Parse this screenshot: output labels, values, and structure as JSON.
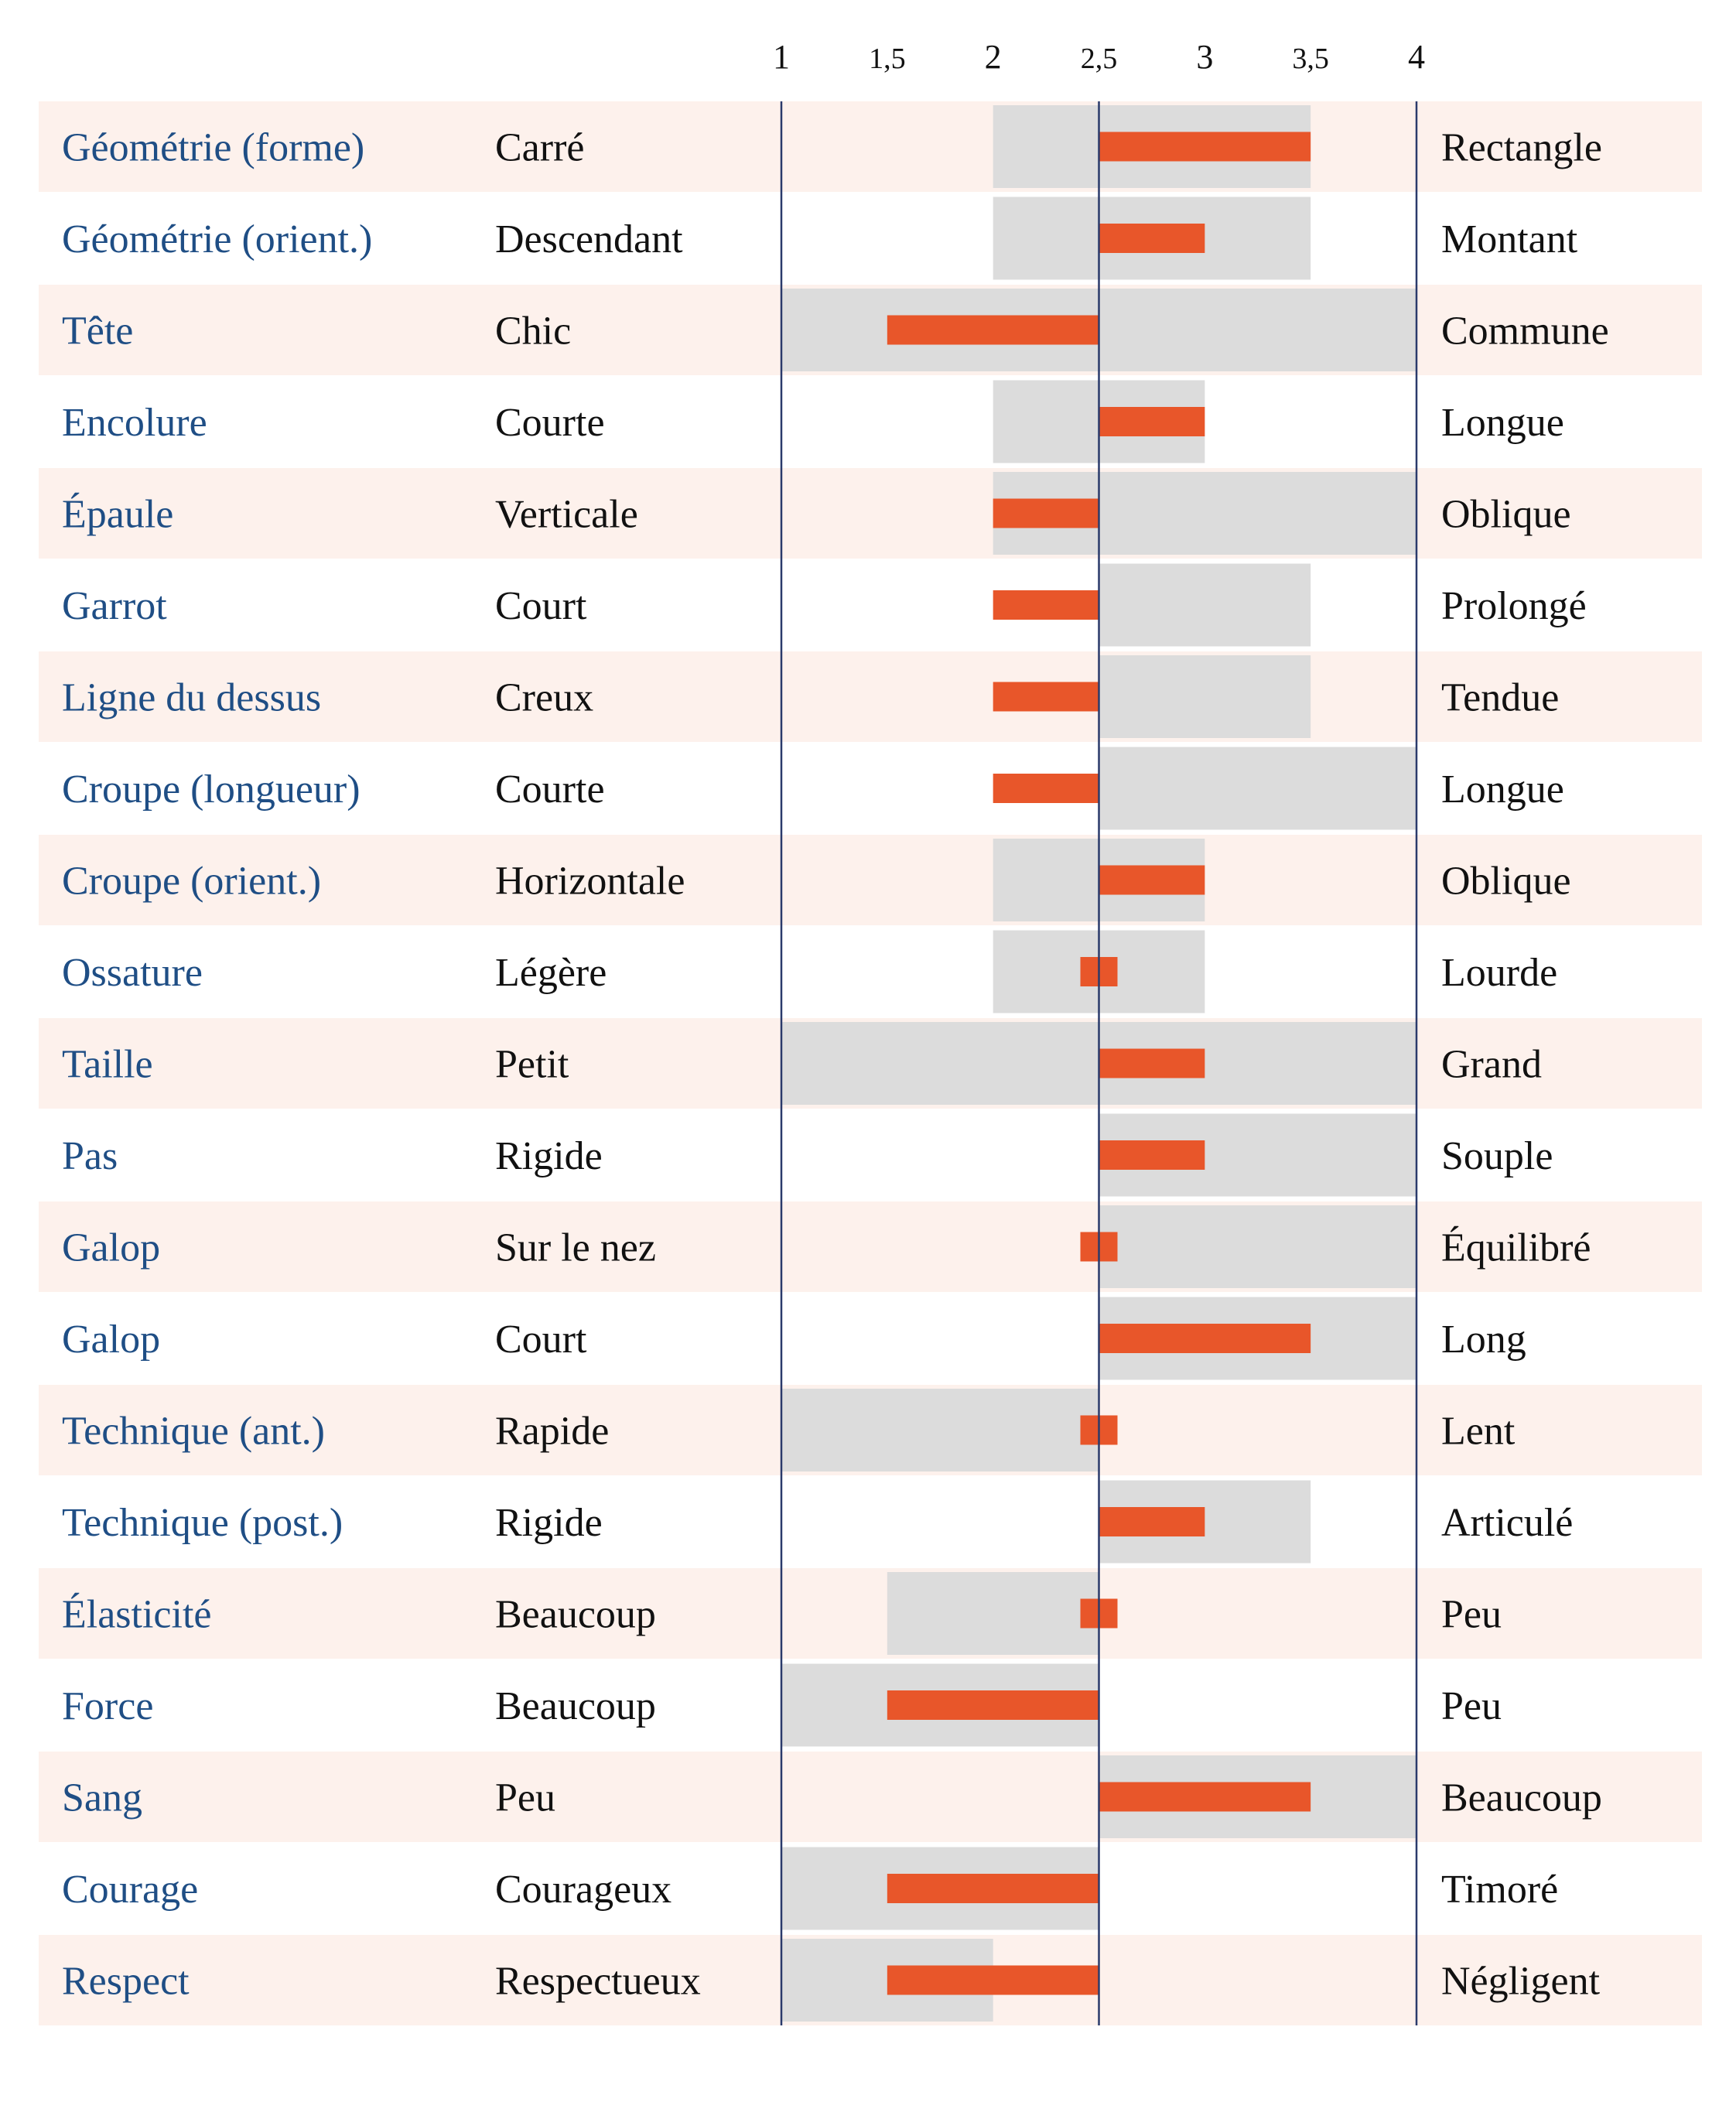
{
  "chart_data": {
    "type": "bar",
    "scale": {
      "min": 1,
      "max": 4,
      "center": 2.5
    },
    "ticks": [
      {
        "value": 1,
        "label": "1"
      },
      {
        "value": 1.5,
        "label": "1,5"
      },
      {
        "value": 2,
        "label": "2"
      },
      {
        "value": 2.5,
        "label": "2,5"
      },
      {
        "value": 3,
        "label": "3"
      },
      {
        "value": 3.5,
        "label": "3,5"
      },
      {
        "value": 4,
        "label": "4"
      }
    ],
    "rows": [
      {
        "trait": "Géométrie (forme)",
        "low": "Carré",
        "high": "Rectangle",
        "range": [
          2.0,
          3.5
        ],
        "value": 3.5
      },
      {
        "trait": "Géométrie (orient.)",
        "low": "Descendant",
        "high": "Montant",
        "range": [
          2.0,
          3.5
        ],
        "value": 3.0
      },
      {
        "trait": "Tête",
        "low": "Chic",
        "high": "Commune",
        "range": [
          1.0,
          4.0
        ],
        "value": 1.5
      },
      {
        "trait": "Encolure",
        "low": "Courte",
        "high": "Longue",
        "range": [
          2.0,
          3.0
        ],
        "value": 3.0
      },
      {
        "trait": "Épaule",
        "low": "Verticale",
        "high": "Oblique",
        "range": [
          2.0,
          4.0
        ],
        "value": 2.0
      },
      {
        "trait": "Garrot",
        "low": "Court",
        "high": "Prolongé",
        "range": [
          2.5,
          3.5
        ],
        "value": 2.0
      },
      {
        "trait": "Ligne du dessus",
        "low": "Creux",
        "high": "Tendue",
        "range": [
          2.5,
          3.5
        ],
        "value": 2.0
      },
      {
        "trait": "Croupe (longueur)",
        "low": "Courte",
        "high": "Longue",
        "range": [
          2.5,
          4.0
        ],
        "value": 2.0
      },
      {
        "trait": "Croupe (orient.)",
        "low": "Horizontale",
        "high": "Oblique",
        "range": [
          2.0,
          3.0
        ],
        "value": 3.0
      },
      {
        "trait": "Ossature",
        "low": "Légère",
        "high": "Lourde",
        "range": [
          2.0,
          3.0
        ],
        "value": 2.5
      },
      {
        "trait": "Taille",
        "low": "Petit",
        "high": "Grand",
        "range": [
          1.0,
          4.0
        ],
        "value": 3.0
      },
      {
        "trait": "Pas",
        "low": "Rigide",
        "high": "Souple",
        "range": [
          2.5,
          4.0
        ],
        "value": 3.0
      },
      {
        "trait": "Galop",
        "low": "Sur le nez",
        "high": "Équilibré",
        "range": [
          2.5,
          4.0
        ],
        "value": 2.5
      },
      {
        "trait": "Galop",
        "low": "Court",
        "high": "Long",
        "range": [
          2.5,
          4.0
        ],
        "value": 3.5
      },
      {
        "trait": "Technique (ant.)",
        "low": "Rapide",
        "high": "Lent",
        "range": [
          1.0,
          2.5
        ],
        "value": 2.5
      },
      {
        "trait": "Technique (post.)",
        "low": "Rigide",
        "high": "Articulé",
        "range": [
          2.5,
          3.5
        ],
        "value": 3.0
      },
      {
        "trait": "Élasticité",
        "low": "Beaucoup",
        "high": "Peu",
        "range": [
          1.5,
          2.5
        ],
        "value": 2.5
      },
      {
        "trait": "Force",
        "low": "Beaucoup",
        "high": "Peu",
        "range": [
          1.0,
          2.5
        ],
        "value": 1.5
      },
      {
        "trait": "Sang",
        "low": "Peu",
        "high": "Beaucoup",
        "range": [
          2.5,
          4.0
        ],
        "value": 3.5
      },
      {
        "trait": "Courage",
        "low": "Courageux",
        "high": "Timoré",
        "range": [
          1.0,
          2.5
        ],
        "value": 1.5
      },
      {
        "trait": "Respect",
        "low": "Respectueux",
        "high": "Négligent",
        "range": [
          1.0,
          2.0
        ],
        "value": 1.5
      }
    ],
    "colors": {
      "value_bar": "#e8562a",
      "range_band": "#dcdcdc",
      "row_stripe": "#fdf1ec",
      "axis_line": "#2a3a6b",
      "trait_text": "#1f4e85",
      "pole_text": "#111111"
    }
  }
}
